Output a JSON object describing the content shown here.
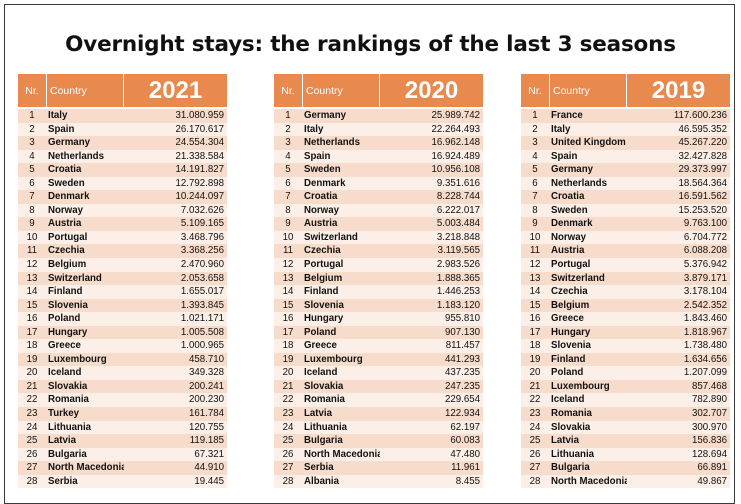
{
  "title": "Overnight stays: the rankings of the last 3 seasons",
  "columns": {
    "nr": "Nr.",
    "country": "Country"
  },
  "tables": [
    {
      "year": "2021",
      "rows": [
        [
          "1",
          "Italy",
          "31.080.959"
        ],
        [
          "2",
          "Spain",
          "26.170.617"
        ],
        [
          "3",
          "Germany",
          "24.554.304"
        ],
        [
          "4",
          "Netherlands",
          "21.338.584"
        ],
        [
          "5",
          "Croatia",
          "14.191.827"
        ],
        [
          "6",
          "Sweden",
          "12.792.898"
        ],
        [
          "7",
          "Denmark",
          "10.244.097"
        ],
        [
          "8",
          "Norway",
          "7.032.626"
        ],
        [
          "9",
          "Austria",
          "5.109.165"
        ],
        [
          "10",
          "Portugal",
          "3.468.796"
        ],
        [
          "11",
          "Czechia",
          "3.368.256"
        ],
        [
          "12",
          "Belgium",
          "2.470.960"
        ],
        [
          "13",
          "Switzerland",
          "2.053.658"
        ],
        [
          "14",
          "Finland",
          "1.655.017"
        ],
        [
          "15",
          "Slovenia",
          "1.393.845"
        ],
        [
          "16",
          "Poland",
          "1.021.171"
        ],
        [
          "17",
          "Hungary",
          "1.005.508"
        ],
        [
          "18",
          "Greece",
          "1.000.965"
        ],
        [
          "19",
          "Luxembourg",
          "458.710"
        ],
        [
          "20",
          "Iceland",
          "349.328"
        ],
        [
          "21",
          "Slovakia",
          "200.241"
        ],
        [
          "22",
          "Romania",
          "200.230"
        ],
        [
          "23",
          "Turkey",
          "161.784"
        ],
        [
          "24",
          "Lithuania",
          "120.755"
        ],
        [
          "25",
          "Latvia",
          "119.185"
        ],
        [
          "26",
          "Bulgaria",
          "67.321"
        ],
        [
          "27",
          "North Macedonia",
          "44.910"
        ],
        [
          "28",
          "Serbia",
          "19.445"
        ]
      ]
    },
    {
      "year": "2020",
      "rows": [
        [
          "1",
          "Germany",
          "25.989.742"
        ],
        [
          "2",
          "Italy",
          "22.264.493"
        ],
        [
          "3",
          "Netherlands",
          "16.962.148"
        ],
        [
          "4",
          "Spain",
          "16.924.489"
        ],
        [
          "5",
          "Sweden",
          "10.956.108"
        ],
        [
          "6",
          "Denmark",
          "9.351.616"
        ],
        [
          "7",
          "Croatia",
          "8.228.744"
        ],
        [
          "8",
          "Norway",
          "6.222.017"
        ],
        [
          "9",
          "Austria",
          "5.003.484"
        ],
        [
          "10",
          "Switzerland",
          "3.218.848"
        ],
        [
          "11",
          "Czechia",
          "3.119.565"
        ],
        [
          "12",
          "Portugal",
          "2.983.526"
        ],
        [
          "13",
          "Belgium",
          "1.888.365"
        ],
        [
          "14",
          "Finland",
          "1.446.253"
        ],
        [
          "15",
          "Slovenia",
          "1.183.120"
        ],
        [
          "16",
          "Hungary",
          "955.810"
        ],
        [
          "17",
          "Poland",
          "907.130"
        ],
        [
          "18",
          "Greece",
          "811.457"
        ],
        [
          "19",
          "Luxembourg",
          "441.293"
        ],
        [
          "20",
          "Iceland",
          "437.235"
        ],
        [
          "21",
          "Slovakia",
          "247.235"
        ],
        [
          "22",
          "Romania",
          "229.654"
        ],
        [
          "23",
          "Latvia",
          "122.934"
        ],
        [
          "24",
          "Lithuania",
          "62.197"
        ],
        [
          "25",
          "Bulgaria",
          "60.083"
        ],
        [
          "26",
          "North Macedonia",
          "47.480"
        ],
        [
          "27",
          "Serbia",
          "11.961"
        ],
        [
          "28",
          "Albania",
          "8.455"
        ]
      ]
    },
    {
      "year": "2019",
      "rows": [
        [
          "1",
          "France",
          "117.600.236"
        ],
        [
          "2",
          "Italy",
          "46.595.352"
        ],
        [
          "3",
          "United Kingdom",
          "45.267.220"
        ],
        [
          "4",
          "Spain",
          "32.427.828"
        ],
        [
          "5",
          "Germany",
          "29.373.997"
        ],
        [
          "6",
          "Netherlands",
          "18.564.364"
        ],
        [
          "7",
          "Croatia",
          "16.591.562"
        ],
        [
          "8",
          "Sweden",
          "15.253.520"
        ],
        [
          "9",
          "Denmark",
          "9.763.100"
        ],
        [
          "10",
          "Norway",
          "6.704.772"
        ],
        [
          "11",
          "Austria",
          "6.088.208"
        ],
        [
          "12",
          "Portugal",
          "5.376.942"
        ],
        [
          "13",
          "Switzerland",
          "3.879.171"
        ],
        [
          "14",
          "Czechia",
          "3.178.104"
        ],
        [
          "15",
          "Belgium",
          "2.542.352"
        ],
        [
          "16",
          "Greece",
          "1.843.460"
        ],
        [
          "17",
          "Hungary",
          "1.818.967"
        ],
        [
          "18",
          "Slovenia",
          "1.738.480"
        ],
        [
          "19",
          "Finland",
          "1.634.656"
        ],
        [
          "20",
          "Poland",
          "1.207.099"
        ],
        [
          "21",
          "Luxembourg",
          "857.468"
        ],
        [
          "22",
          "Iceland",
          "782.890"
        ],
        [
          "23",
          "Romania",
          "302.707"
        ],
        [
          "24",
          "Slovakia",
          "300.970"
        ],
        [
          "25",
          "Latvia",
          "156.836"
        ],
        [
          "26",
          "Lithuania",
          "128.694"
        ],
        [
          "27",
          "Bulgaria",
          "66.891"
        ],
        [
          "28",
          "North Macedonia",
          "49.867"
        ]
      ]
    }
  ]
}
